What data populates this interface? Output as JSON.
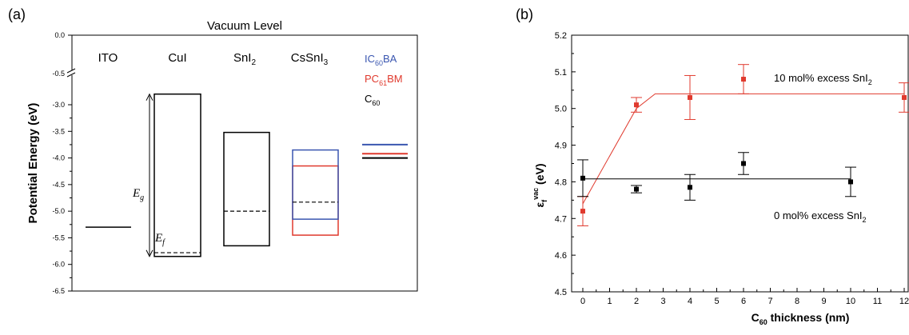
{
  "panel_a": {
    "letter": "(a)",
    "header": "Vacuum Level",
    "ylabel": "Potential Energy (eV)",
    "materials": [
      "ITO",
      "CuI",
      "SnI",
      "CsSnI"
    ],
    "material_subscripts": [
      "",
      "",
      "2",
      "3"
    ],
    "legend": [
      {
        "base": "IC",
        "sub": "60",
        "tail": "BA",
        "color": "#3a56b0"
      },
      {
        "base": "PC",
        "sub": "61",
        "tail": "BM",
        "color": "#e03a2e"
      },
      {
        "base": "C",
        "sub": "60",
        "tail": "",
        "color": "#000000"
      }
    ],
    "eg_label": "E",
    "eg_sub": "g",
    "ef_label": "E",
    "ef_sub": "f"
  },
  "panel_b": {
    "letter": "(b)",
    "annotations": [
      {
        "text": "10 mol% excess SnI",
        "sub": "2"
      },
      {
        "text": "0 mol% excess SnI",
        "sub": "2"
      }
    ]
  },
  "chart_data": [
    {
      "type": "energy-level-diagram",
      "ylabel": "Potential Energy (eV)",
      "ylim": [
        -6.5,
        0.0
      ],
      "axis_break": [
        -0.5,
        -3.0
      ],
      "y_ticks": [
        "0.0",
        "-0.5",
        "-3.0",
        "-3.5",
        "-4.0",
        "-4.5",
        "-5.0",
        "-5.5",
        "-6.0",
        "-6.5"
      ],
      "y_tick_values": [
        0.0,
        -0.5,
        -3.0,
        -3.5,
        -4.0,
        -4.5,
        -5.0,
        -5.5,
        -6.0,
        -6.5
      ],
      "levels": [
        {
          "material": "ITO",
          "work_function": -5.3
        },
        {
          "material": "CuI",
          "cb": -2.8,
          "vb": -5.85,
          "fermi": -5.78
        },
        {
          "material": "SnI2",
          "cb": -3.52,
          "vb": -5.65,
          "fermi": -5.0
        },
        {
          "material": "CsSnI3",
          "inner": [
            -4.15,
            -5.45
          ],
          "outer": [
            -3.85,
            -5.15
          ],
          "fermi": -4.83
        },
        {
          "material": "IC60BA",
          "lumo": -3.75
        },
        {
          "material": "PC61BM",
          "lumo": -3.92
        },
        {
          "material": "C60",
          "lumo": -4.0
        }
      ]
    },
    {
      "type": "scatter",
      "xlabel": "C",
      "xlabel_sub": "60",
      "xlabel_tail": " thickness (nm)",
      "ylabel": "ε",
      "ylabel_sub": "f",
      "ylabel_sup": "vac",
      "ylabel_tail": " (eV)",
      "xlim": [
        -0.5,
        12
      ],
      "ylim": [
        4.5,
        5.2
      ],
      "x_ticks": [
        0,
        1,
        2,
        3,
        4,
        5,
        6,
        7,
        8,
        9,
        10,
        11,
        12
      ],
      "y_ticks": [
        "4.5",
        "4.6",
        "4.7",
        "4.8",
        "4.9",
        "5.0",
        "5.1",
        "5.2"
      ],
      "series": [
        {
          "name": "10 mol% excess SnI2",
          "color": "#e03a2e",
          "x": [
            0,
            2,
            4,
            6,
            12
          ],
          "y": [
            4.72,
            5.01,
            5.03,
            5.08,
            5.03
          ],
          "err": [
            0.04,
            0.02,
            0.06,
            0.04,
            0.04
          ],
          "fit_x": [
            0,
            2,
            2.7,
            12
          ],
          "fit_y": [
            4.74,
            5.0,
            5.04,
            5.04
          ]
        },
        {
          "name": "0 mol% excess SnI2",
          "color": "#000000",
          "x": [
            0,
            2,
            4,
            6,
            10
          ],
          "y": [
            4.81,
            4.78,
            4.785,
            4.85,
            4.8
          ],
          "err": [
            0.05,
            0.01,
            0.035,
            0.03,
            0.04
          ],
          "fit_x": [
            0,
            10
          ],
          "fit_y": [
            4.808,
            4.808
          ]
        }
      ]
    }
  ]
}
